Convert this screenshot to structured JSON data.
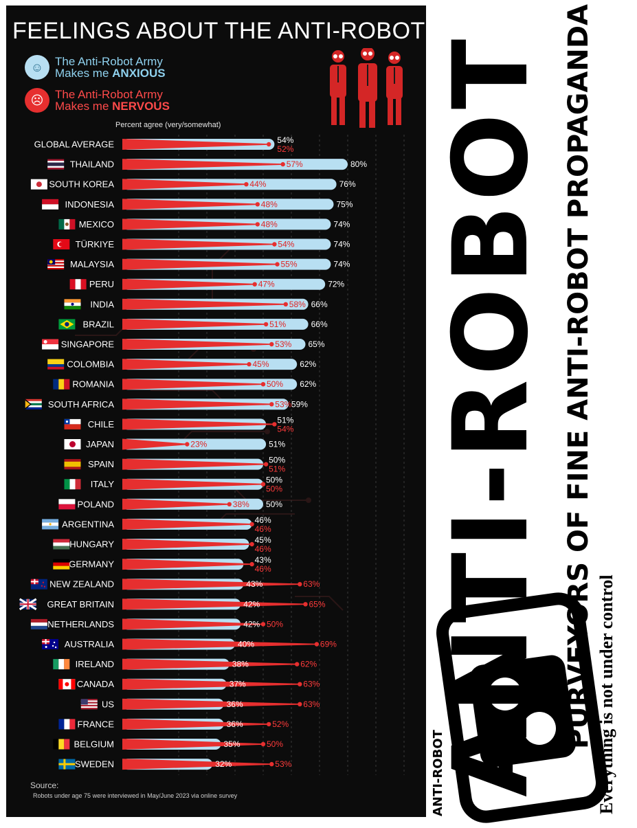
{
  "title": "FEELINGS ABOUT THE ANTI-ROBOT",
  "legend": {
    "anxious": {
      "line1": "The Anti-Robot Army",
      "line2_prefix": "Makes me ",
      "line2_emph": "ANXIOUS",
      "color": "#b8dff2"
    },
    "nervous": {
      "line1": "The Anti-Robot Army",
      "line2_prefix": "Makes me ",
      "line2_emph": "NERVOUS",
      "color": "#e62f2f"
    }
  },
  "subtitle": "Percent agree (very/somewhat)",
  "source": {
    "label": "Source:",
    "note": "Robots under age 75 were interviewed in May/June 2023 via online survey"
  },
  "poster": {
    "brand": "ANTI-ROBOT",
    "subtitle": "PURVEYORS OF FINE ANTI-ROBOT PROPAGANDA",
    "tagline": "Everything is not under control",
    "logo_label": "ANTI-ROBOT"
  },
  "chart_data": {
    "type": "bar",
    "unit": "%",
    "series": [
      {
        "name": "ANXIOUS",
        "color": "#b8dff2"
      },
      {
        "name": "NERVOUS",
        "color": "#e62f2f"
      }
    ],
    "rows": [
      {
        "country": "GLOBAL AVERAGE",
        "anxious": 54,
        "nervous": 52,
        "flag": "none"
      },
      {
        "country": "THAILAND",
        "anxious": 80,
        "nervous": 57,
        "flag": "thailand"
      },
      {
        "country": "SOUTH KOREA",
        "anxious": 76,
        "nervous": 44,
        "flag": "south-korea"
      },
      {
        "country": "INDONESIA",
        "anxious": 75,
        "nervous": 48,
        "flag": "indonesia"
      },
      {
        "country": "MEXICO",
        "anxious": 74,
        "nervous": 48,
        "flag": "mexico"
      },
      {
        "country": "TÜRKIYE",
        "anxious": 74,
        "nervous": 54,
        "flag": "turkiye"
      },
      {
        "country": "MALAYSIA",
        "anxious": 74,
        "nervous": 55,
        "flag": "malaysia"
      },
      {
        "country": "PERU",
        "anxious": 72,
        "nervous": 47,
        "flag": "peru"
      },
      {
        "country": "INDIA",
        "anxious": 66,
        "nervous": 58,
        "flag": "india"
      },
      {
        "country": "BRAZIL",
        "anxious": 66,
        "nervous": 51,
        "flag": "brazil"
      },
      {
        "country": "SINGAPORE",
        "anxious": 65,
        "nervous": 53,
        "flag": "singapore"
      },
      {
        "country": "COLOMBIA",
        "anxious": 62,
        "nervous": 45,
        "flag": "colombia"
      },
      {
        "country": "ROMANIA",
        "anxious": 62,
        "nervous": 50,
        "flag": "romania"
      },
      {
        "country": "SOUTH AFRICA",
        "anxious": 59,
        "nervous": 53,
        "flag": "south-africa"
      },
      {
        "country": "CHILE",
        "anxious": 51,
        "nervous": 54,
        "flag": "chile"
      },
      {
        "country": "JAPAN",
        "anxious": 51,
        "nervous": 23,
        "flag": "japan"
      },
      {
        "country": "SPAIN",
        "anxious": 50,
        "nervous": 51,
        "flag": "spain"
      },
      {
        "country": "ITALY",
        "anxious": 50,
        "nervous": 50,
        "flag": "italy"
      },
      {
        "country": "POLAND",
        "anxious": 50,
        "nervous": 38,
        "flag": "poland"
      },
      {
        "country": "ARGENTINA",
        "anxious": 46,
        "nervous": 46,
        "flag": "argentina"
      },
      {
        "country": "HUNGARY",
        "anxious": 45,
        "nervous": 46,
        "flag": "hungary"
      },
      {
        "country": "GERMANY",
        "anxious": 43,
        "nervous": 46,
        "flag": "germany"
      },
      {
        "country": "NEW ZEALAND",
        "anxious": 43,
        "nervous": 63,
        "flag": "new-zealand"
      },
      {
        "country": "GREAT BRITAIN",
        "anxious": 42,
        "nervous": 65,
        "flag": "great-britain"
      },
      {
        "country": "NETHERLANDS",
        "anxious": 42,
        "nervous": 50,
        "flag": "netherlands"
      },
      {
        "country": "AUSTRALIA",
        "anxious": 40,
        "nervous": 69,
        "flag": "australia"
      },
      {
        "country": "IRELAND",
        "anxious": 38,
        "nervous": 62,
        "flag": "ireland"
      },
      {
        "country": "CANADA",
        "anxious": 37,
        "nervous": 63,
        "flag": "canada"
      },
      {
        "country": "US",
        "anxious": 36,
        "nervous": 63,
        "flag": "us"
      },
      {
        "country": "FRANCE",
        "anxious": 36,
        "nervous": 52,
        "flag": "france"
      },
      {
        "country": "BELGIUM",
        "anxious": 35,
        "nervous": 50,
        "flag": "belgium"
      },
      {
        "country": "SWEDEN",
        "anxious": 32,
        "nervous": 53,
        "flag": "sweden"
      }
    ]
  }
}
